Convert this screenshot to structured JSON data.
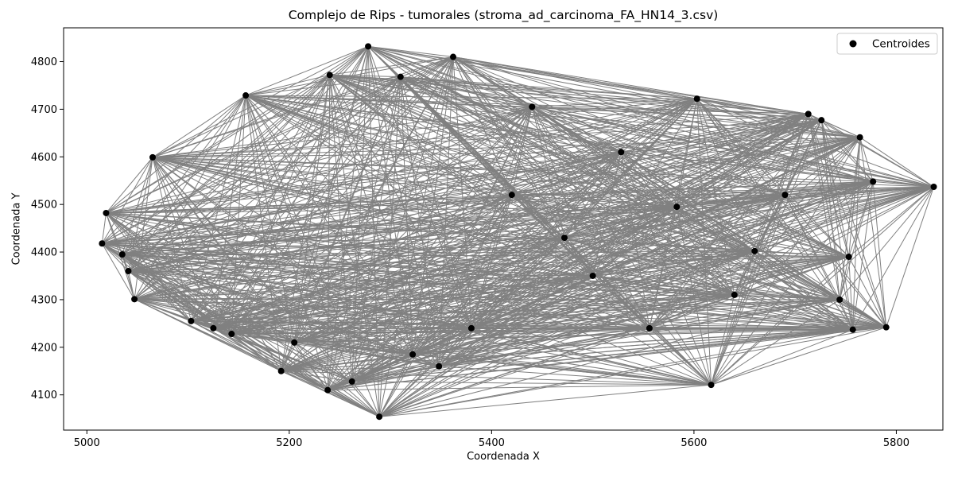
{
  "chart_data": {
    "type": "scatter",
    "title": "Complejo de Rips - tumorales (stroma_ad_carcinoma_FA_HN14_3.csv)",
    "xlabel": "Coordenada X",
    "ylabel": "Coordenada Y",
    "xlim": [
      4977,
      5846
    ],
    "ylim": [
      4026,
      4871
    ],
    "x_ticks": [
      5000,
      5200,
      5400,
      5600,
      5800
    ],
    "y_ticks": [
      4100,
      4200,
      4300,
      4400,
      4500,
      4600,
      4700,
      4800
    ],
    "legend": {
      "labels": [
        "Centroides"
      ],
      "placement": "top-right"
    },
    "grid": false,
    "colors": {
      "points": "#000000",
      "edges": "#808080"
    },
    "series": [
      {
        "name": "Centroides",
        "points": [
          [
            5015,
            4418
          ],
          [
            5019,
            4482
          ],
          [
            5035,
            4395
          ],
          [
            5041,
            4360
          ],
          [
            5047,
            4301
          ],
          [
            5065,
            4599
          ],
          [
            5103,
            4255
          ],
          [
            5125,
            4240
          ],
          [
            5143,
            4228
          ],
          [
            5157,
            4729
          ],
          [
            5192,
            4150
          ],
          [
            5205,
            4210
          ],
          [
            5238,
            4110
          ],
          [
            5240,
            4772
          ],
          [
            5262,
            4128
          ],
          [
            5278,
            4832
          ],
          [
            5289,
            4054
          ],
          [
            5310,
            4768
          ],
          [
            5322,
            4185
          ],
          [
            5348,
            4160
          ],
          [
            5362,
            4810
          ],
          [
            5380,
            4240
          ],
          [
            5420,
            4520
          ],
          [
            5440,
            4705
          ],
          [
            5472,
            4430
          ],
          [
            5500,
            4350
          ],
          [
            5528,
            4610
          ],
          [
            5556,
            4240
          ],
          [
            5583,
            4495
          ],
          [
            5603,
            4722
          ],
          [
            5617,
            4121
          ],
          [
            5640,
            4310
          ],
          [
            5660,
            4402
          ],
          [
            5690,
            4520
          ],
          [
            5713,
            4690
          ],
          [
            5726,
            4677
          ],
          [
            5744,
            4300
          ],
          [
            5753,
            4390
          ],
          [
            5757,
            4237
          ],
          [
            5764,
            4641
          ],
          [
            5777,
            4548
          ],
          [
            5790,
            4242
          ],
          [
            5837,
            4537
          ]
        ]
      }
    ],
    "edges_note": "Rips complex edges connect every pair of centroids"
  }
}
